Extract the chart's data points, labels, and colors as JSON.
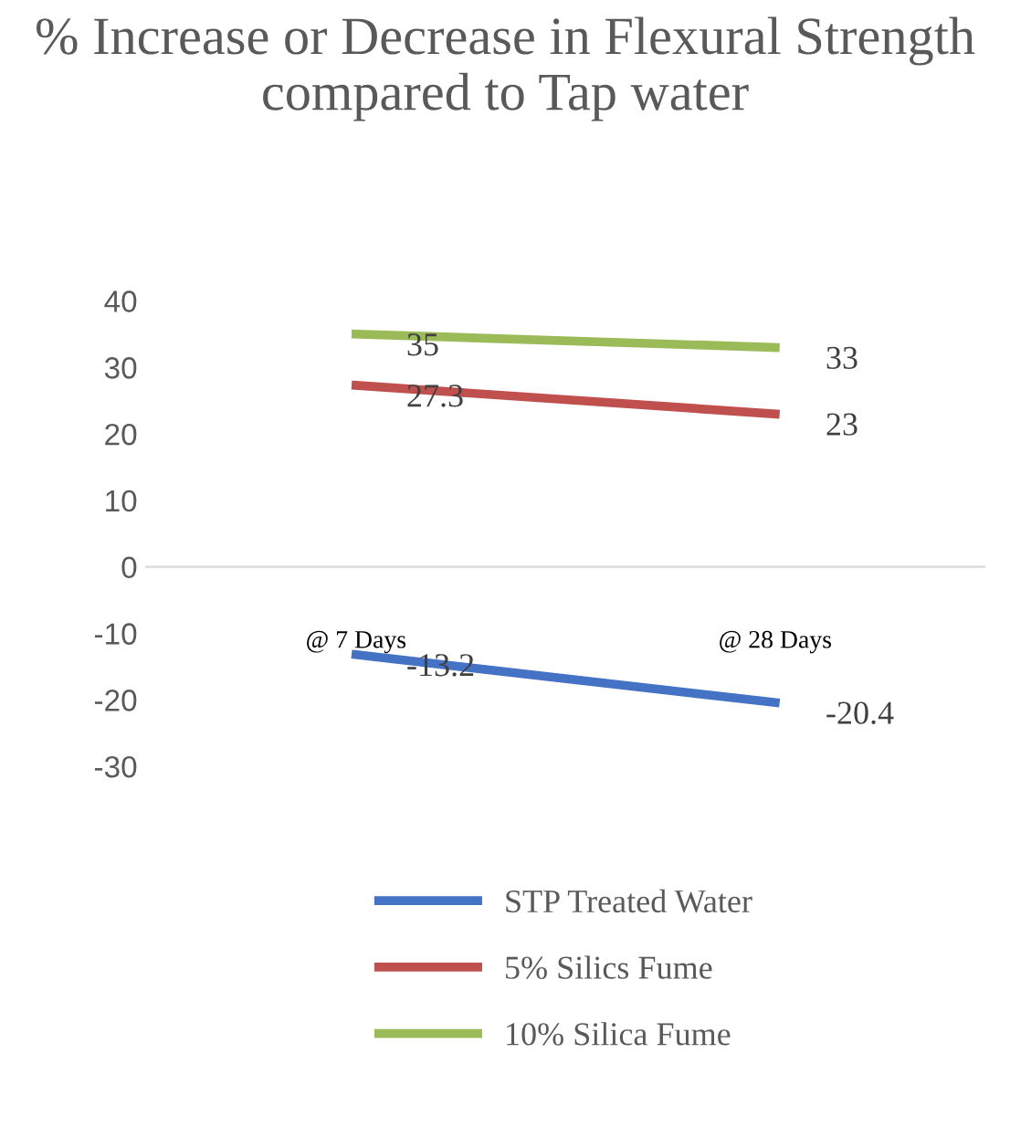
{
  "chart_data": {
    "type": "line",
    "title": "% Increase or Decrease in Flexural Strength compared to Tap water",
    "categories": [
      "@ 7 Days",
      "@ 28 Days"
    ],
    "series": [
      {
        "name": "STP Treated Water",
        "color": "#4472c4",
        "values": [
          -13.2,
          -20.4
        ]
      },
      {
        "name": "5% Silics Fume",
        "color": "#c0504d",
        "values": [
          27.3,
          23
        ]
      },
      {
        "name": "10% Silica Fume",
        "color": "#9bbb59",
        "values": [
          35,
          33
        ]
      }
    ],
    "ylim": [
      -30,
      40
    ],
    "yticks": [
      -30,
      -20,
      -10,
      0,
      10,
      20,
      30,
      40
    ],
    "grid": false,
    "legend": "bottom",
    "data_labels": true,
    "marker": "none",
    "line_style": "solid"
  }
}
